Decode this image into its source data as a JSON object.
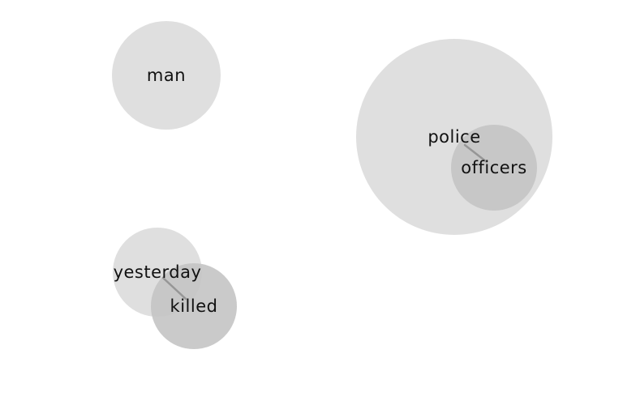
{
  "diagram": {
    "nodes": [
      {
        "id": "man",
        "label": "man"
      },
      {
        "id": "police",
        "label": "police"
      },
      {
        "id": "officers",
        "label": "officers"
      },
      {
        "id": "yesterday",
        "label": "yesterday"
      },
      {
        "id": "killed",
        "label": "killed"
      }
    ],
    "links": [
      {
        "source": "police",
        "target": "officers"
      },
      {
        "source": "yesterday",
        "target": "killed"
      }
    ]
  }
}
